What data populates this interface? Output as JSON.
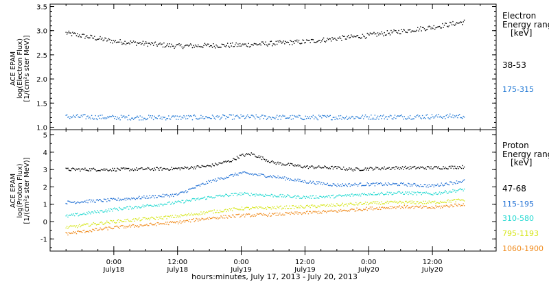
{
  "chart_data": [
    {
      "type": "scatter",
      "panel": "electron",
      "ylabel_lines": [
        "ACE EPAM",
        "log(Electron Flux)",
        "[1/(cm²s ster MeV)]"
      ],
      "yticks": [
        "1.0",
        "1.5",
        "2.0",
        "2.5",
        "3.0",
        "3.5"
      ],
      "ylim": [
        0.95,
        3.55
      ],
      "legend_title": [
        "Electron",
        "Energy ranges",
        "[keV]"
      ],
      "series": [
        {
          "name": "38-53",
          "color": "#000000",
          "x": [
            -9,
            0,
            12,
            24,
            36,
            48,
            60,
            66
          ],
          "y": [
            2.95,
            2.78,
            2.68,
            2.7,
            2.77,
            2.9,
            3.07,
            3.18
          ]
        },
        {
          "name": "175-315",
          "color": "#1f77d4",
          "x": [
            -9,
            0,
            12,
            24,
            36,
            48,
            60,
            66
          ],
          "y": [
            1.22,
            1.2,
            1.2,
            1.21,
            1.2,
            1.21,
            1.22,
            1.23
          ]
        }
      ]
    },
    {
      "type": "scatter",
      "panel": "proton",
      "ylabel_lines": [
        "ACE EPAM",
        "log(Proton Flux)",
        "[1/(cm²s ster MeV)]"
      ],
      "yticks": [
        "-1",
        "0",
        "1",
        "2",
        "3",
        "4",
        "5"
      ],
      "ylim": [
        -1.7,
        5.3
      ],
      "legend_title": [
        "Proton",
        "Energy ranges",
        "[keV]"
      ],
      "series": [
        {
          "name": "47-68",
          "color": "#000000",
          "x": [
            -9,
            0,
            12,
            18,
            22,
            24,
            26,
            30,
            36,
            42,
            45,
            48,
            54,
            60,
            66
          ],
          "y": [
            3.0,
            3.0,
            3.05,
            3.2,
            3.5,
            3.8,
            3.9,
            3.4,
            3.15,
            3.1,
            3.0,
            3.05,
            3.1,
            3.1,
            3.15
          ]
        },
        {
          "name": "115-195",
          "color": "#1f6fd4",
          "x": [
            -9,
            0,
            12,
            18,
            24,
            30,
            36,
            42,
            48,
            54,
            60,
            66
          ],
          "y": [
            1.1,
            1.25,
            1.55,
            2.3,
            2.8,
            2.6,
            2.3,
            2.1,
            2.15,
            2.15,
            2.05,
            2.35
          ]
        },
        {
          "name": "310-580",
          "color": "#1fd8d0",
          "x": [
            -9,
            0,
            12,
            18,
            24,
            30,
            36,
            42,
            48,
            54,
            60,
            66
          ],
          "y": [
            0.3,
            0.7,
            1.1,
            1.4,
            1.6,
            1.5,
            1.4,
            1.45,
            1.6,
            1.65,
            1.6,
            1.85
          ]
        },
        {
          "name": "795-1193",
          "color": "#d6e61a",
          "x": [
            -9,
            0,
            12,
            18,
            24,
            30,
            36,
            42,
            48,
            54,
            60,
            66
          ],
          "y": [
            -0.35,
            0.0,
            0.3,
            0.55,
            0.75,
            0.8,
            0.85,
            0.95,
            1.05,
            1.1,
            1.1,
            1.25
          ]
        },
        {
          "name": "1060-1900",
          "color": "#f08a1a",
          "x": [
            -9,
            0,
            12,
            18,
            24,
            30,
            36,
            42,
            48,
            54,
            60,
            66
          ],
          "y": [
            -0.7,
            -0.35,
            -0.05,
            0.2,
            0.35,
            0.4,
            0.5,
            0.6,
            0.75,
            0.85,
            0.8,
            1.0
          ]
        }
      ]
    }
  ],
  "x_axis": {
    "xlim": [
      -12,
      72
    ],
    "major_ticks": [
      0,
      12,
      24,
      36,
      48,
      60
    ],
    "tick_time_labels": [
      "0:00",
      "12:00",
      "0:00",
      "12:00",
      "0:00",
      "12:00"
    ],
    "tick_date_labels": [
      "July18",
      "July18",
      "July19",
      "July19",
      "July20",
      "July20"
    ],
    "title": "hours:minutes, July 17, 2013 - July 20, 2013"
  }
}
